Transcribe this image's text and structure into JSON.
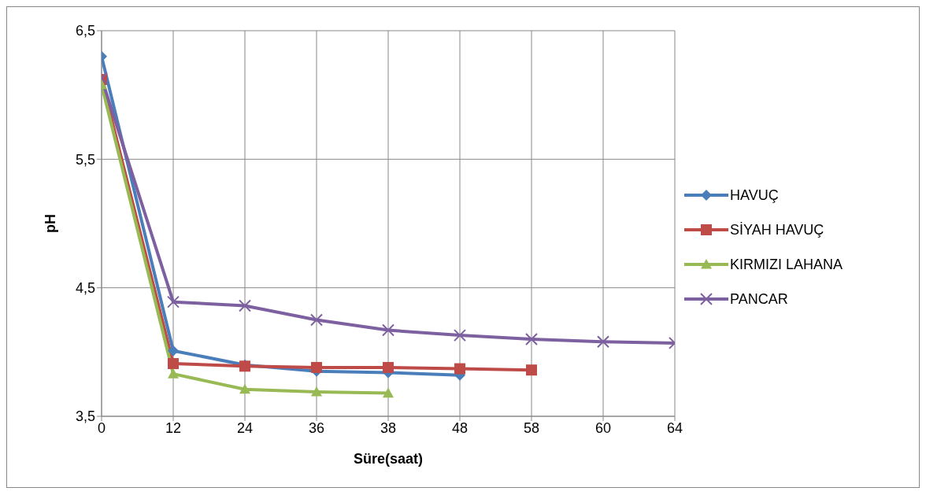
{
  "chart_data": {
    "type": "line",
    "xlabel": "Süre(saat)",
    "ylabel": "pH",
    "categories": [
      "0",
      "12",
      "24",
      "36",
      "38",
      "48",
      "58",
      "60",
      "64"
    ],
    "series": [
      {
        "name": "HAVUÇ",
        "color": "#4a7ebb",
        "marker": "diamond",
        "values": [
          6.3,
          4.01,
          3.9,
          3.85,
          3.84,
          3.82,
          null,
          null,
          null
        ]
      },
      {
        "name": "SİYAH HAVUÇ",
        "color": "#be4b48",
        "marker": "square",
        "values": [
          6.12,
          3.91,
          3.89,
          3.88,
          3.88,
          3.87,
          3.86,
          null,
          null
        ]
      },
      {
        "name": "KIRMIZI LAHANA",
        "color": "#98b954",
        "marker": "triangle",
        "values": [
          6.08,
          3.83,
          3.71,
          3.69,
          3.68,
          null,
          null,
          null,
          null
        ]
      },
      {
        "name": "PANCAR",
        "color": "#7d60a0",
        "marker": "cross",
        "values": [
          6.13,
          4.39,
          4.36,
          4.25,
          4.17,
          4.13,
          4.1,
          4.08,
          4.07
        ]
      }
    ],
    "ylim": [
      3.5,
      6.5
    ],
    "yticks": [
      {
        "value": 3.5,
        "label": "3,5"
      },
      {
        "value": 4.5,
        "label": "4,5"
      },
      {
        "value": 5.5,
        "label": "5,5"
      },
      {
        "value": 6.5,
        "label": "6,5"
      }
    ],
    "grid": true,
    "legend": "right",
    "line_style": "solid"
  }
}
